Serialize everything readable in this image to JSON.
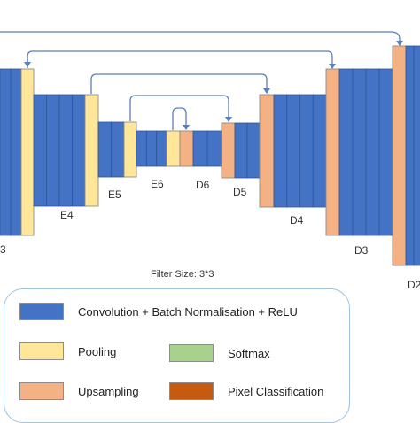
{
  "diagram": {
    "colors": {
      "conv": "#4472c4",
      "conv_edge": "#2f5597",
      "pooling": "#ffe699",
      "upsampling": "#f4b183",
      "pixel_classification": "#c55a11",
      "softmax": "#a9d18e",
      "arrow": "#5b7fb8"
    },
    "stage_labels": {
      "e3": "3",
      "e4": "E4",
      "e5": "E5",
      "e6": "E6",
      "d6": "D6",
      "d5": "D5",
      "d4": "D4",
      "d3": "D3",
      "d2": "D2"
    },
    "filter_size": "Filter Size: 3*3"
  },
  "legend": {
    "items": [
      {
        "key": "conv",
        "label": "Convolution + Batch Normalisation + ReLU",
        "color": "#4472c4"
      },
      {
        "key": "pooling",
        "label": "Pooling",
        "color": "#ffe699"
      },
      {
        "key": "softmax",
        "label": "Softmax",
        "color": "#a9d18e"
      },
      {
        "key": "upsampling",
        "label": "Upsampling",
        "color": "#f4b183"
      },
      {
        "key": "pixel_classification",
        "label": "Pixel Classification",
        "color": "#c55a11"
      }
    ]
  }
}
